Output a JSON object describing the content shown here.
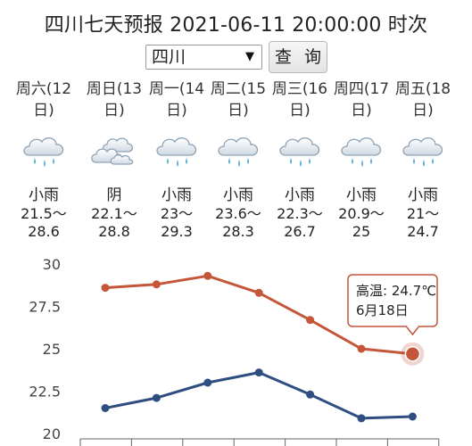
{
  "header": {
    "title": "四川七天预报 2021-06-11 20:00:00 时次"
  },
  "controls": {
    "region_value": "四川",
    "query_label": "查 询"
  },
  "days": [
    {
      "label_line1": "周六(12",
      "label_line2": "日)",
      "condition": "小雨",
      "range_line1": "21.5～",
      "range_line2": "28.6",
      "icon": "rain-cloud-icon"
    },
    {
      "label_line1": "周日(13",
      "label_line2": "日)",
      "condition": "阴",
      "range_line1": "22.1～",
      "range_line2": "28.8",
      "icon": "overcast-cloud-icon"
    },
    {
      "label_line1": "周一(14",
      "label_line2": "日)",
      "condition": "小雨",
      "range_line1": "23～",
      "range_line2": "29.3",
      "icon": "rain-cloud-icon"
    },
    {
      "label_line1": "周二(15",
      "label_line2": "日)",
      "condition": "小雨",
      "range_line1": "23.6～",
      "range_line2": "28.3",
      "icon": "rain-cloud-icon"
    },
    {
      "label_line1": "周三(16",
      "label_line2": "日)",
      "condition": "小雨",
      "range_line1": "22.3～",
      "range_line2": "26.7",
      "icon": "rain-cloud-icon"
    },
    {
      "label_line1": "周四(17",
      "label_line2": "日)",
      "condition": "小雨",
      "range_line1": "20.9～",
      "range_line2": "25",
      "icon": "rain-cloud-icon"
    },
    {
      "label_line1": "周五(18",
      "label_line2": "日)",
      "condition": "小雨",
      "range_line1": "21～",
      "range_line2": "24.7",
      "icon": "rain-cloud-icon"
    }
  ],
  "chart_data": {
    "type": "line",
    "x": [
      "12",
      "13",
      "14",
      "15",
      "16",
      "17",
      "18"
    ],
    "series": [
      {
        "values": [
          28.6,
          28.8,
          29.3,
          28.3,
          26.7,
          25,
          24.7
        ],
        "color": "#c4563a"
      },
      {
        "values": [
          21.5,
          22.1,
          23,
          23.6,
          22.3,
          20.9,
          21
        ],
        "color": "#2e4d80"
      }
    ],
    "y_ticks": [
      "30",
      "27.5",
      "25",
      "22.5",
      "20"
    ],
    "ylim": [
      20,
      30
    ],
    "grid": false,
    "tooltip": {
      "line1": "高温: 24.7℃",
      "line2": "6月18日",
      "series_index": 0,
      "point_index": 6
    }
  }
}
